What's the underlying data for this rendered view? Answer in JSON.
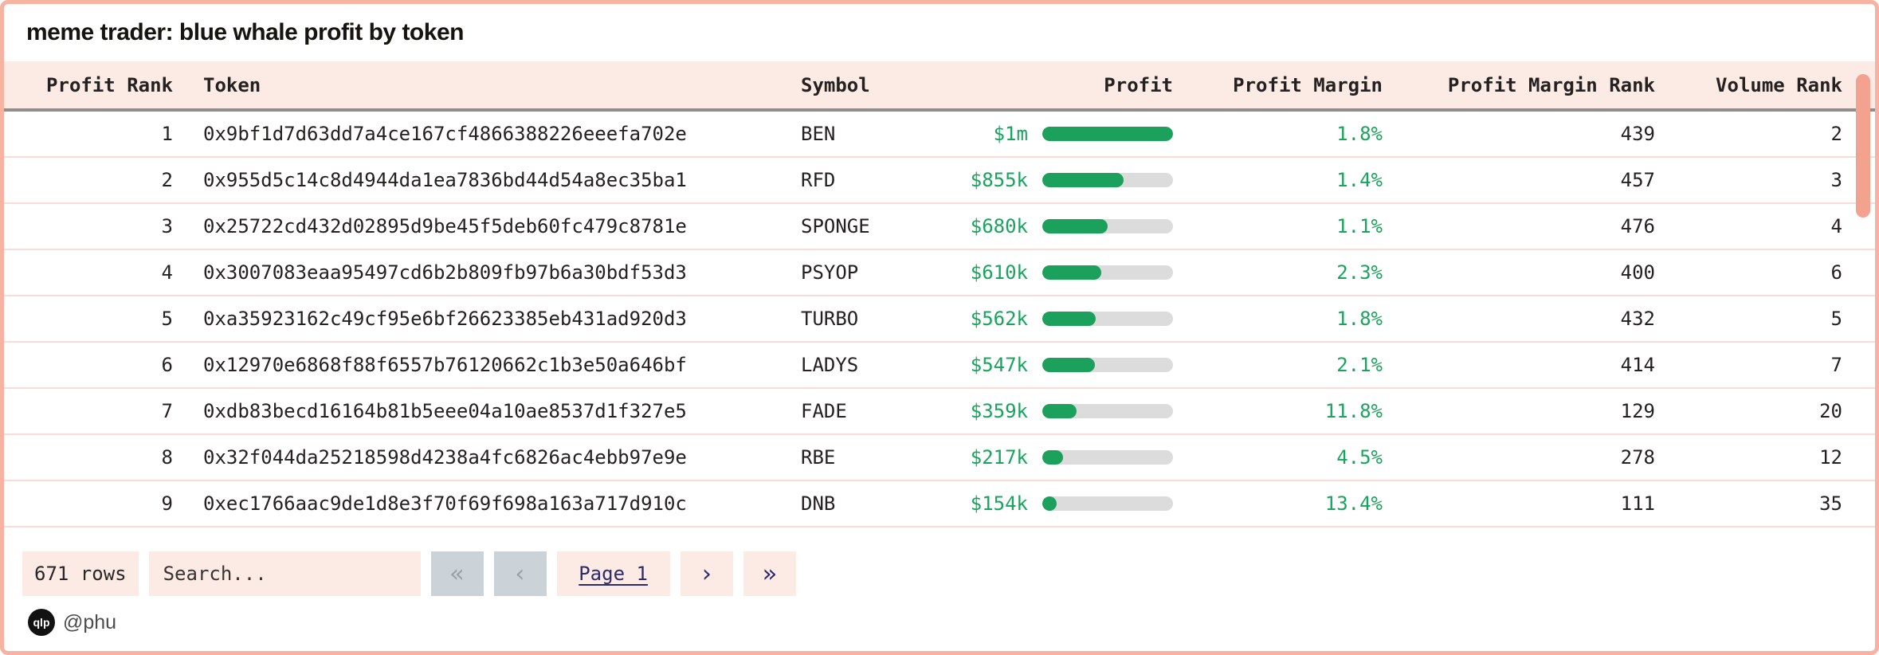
{
  "title": "meme trader: blue whale profit by token",
  "table": {
    "columns": [
      "Profit Rank",
      "Token",
      "Symbol",
      "Profit",
      "Profit Margin",
      "Profit Margin Rank",
      "Volume Rank"
    ],
    "rows": [
      {
        "profit_rank": "1",
        "token": "0x9bf1d7d63dd7a4ce167cf4866388226eeefa702e",
        "symbol": "BEN",
        "profit": "$1m",
        "bar_pct": 100,
        "margin": "1.8%",
        "margin_rank": "439",
        "volume_rank": "2"
      },
      {
        "profit_rank": "2",
        "token": "0x955d5c14c8d4944da1ea7836bd44d54a8ec35ba1",
        "symbol": "RFD",
        "profit": "$855k",
        "bar_pct": 62,
        "margin": "1.4%",
        "margin_rank": "457",
        "volume_rank": "3"
      },
      {
        "profit_rank": "3",
        "token": "0x25722cd432d02895d9be45f5deb60fc479c8781e",
        "symbol": "SPONGE",
        "profit": "$680k",
        "bar_pct": 50,
        "margin": "1.1%",
        "margin_rank": "476",
        "volume_rank": "4"
      },
      {
        "profit_rank": "4",
        "token": "0x3007083eaa95497cd6b2b809fb97b6a30bdf53d3",
        "symbol": "PSYOP",
        "profit": "$610k",
        "bar_pct": 45,
        "margin": "2.3%",
        "margin_rank": "400",
        "volume_rank": "6"
      },
      {
        "profit_rank": "5",
        "token": "0xa35923162c49cf95e6bf26623385eb431ad920d3",
        "symbol": "TURBO",
        "profit": "$562k",
        "bar_pct": 41,
        "margin": "1.8%",
        "margin_rank": "432",
        "volume_rank": "5"
      },
      {
        "profit_rank": "6",
        "token": "0x12970e6868f88f6557b76120662c1b3e50a646bf",
        "symbol": "LADYS",
        "profit": "$547k",
        "bar_pct": 40,
        "margin": "2.1%",
        "margin_rank": "414",
        "volume_rank": "7"
      },
      {
        "profit_rank": "7",
        "token": "0xdb83becd16164b81b5eee04a10ae8537d1f327e5",
        "symbol": "FADE",
        "profit": "$359k",
        "bar_pct": 26,
        "margin": "11.8%",
        "margin_rank": "129",
        "volume_rank": "20"
      },
      {
        "profit_rank": "8",
        "token": "0x32f044da25218598d4238a4fc6826ac4ebb97e9e",
        "symbol": "RBE",
        "profit": "$217k",
        "bar_pct": 16,
        "margin": "4.5%",
        "margin_rank": "278",
        "volume_rank": "12"
      },
      {
        "profit_rank": "9",
        "token": "0xec1766aac9de1d8e3f70f69f698a163a717d910c",
        "symbol": "DNB",
        "profit": "$154k",
        "bar_pct": 11,
        "margin": "13.4%",
        "margin_rank": "111",
        "volume_rank": "35"
      }
    ]
  },
  "footer": {
    "rows_count": "671 rows",
    "search_placeholder": "Search...",
    "first_icon": "«",
    "prev_icon": "‹",
    "page_label": "Page 1",
    "next_icon": "›",
    "last_icon": "»"
  },
  "branding": {
    "logo": "qlp",
    "handle": "@phu"
  },
  "colors": {
    "accent_green": "#1ca15c",
    "green_text": "#17a45c",
    "frame_salmon": "#f7b2a2",
    "header_pink": "#fcebe5",
    "disabled_gray": "#ccd3d8",
    "link_navy": "#2d2a6e",
    "bar_track": "#dcdcdc"
  }
}
